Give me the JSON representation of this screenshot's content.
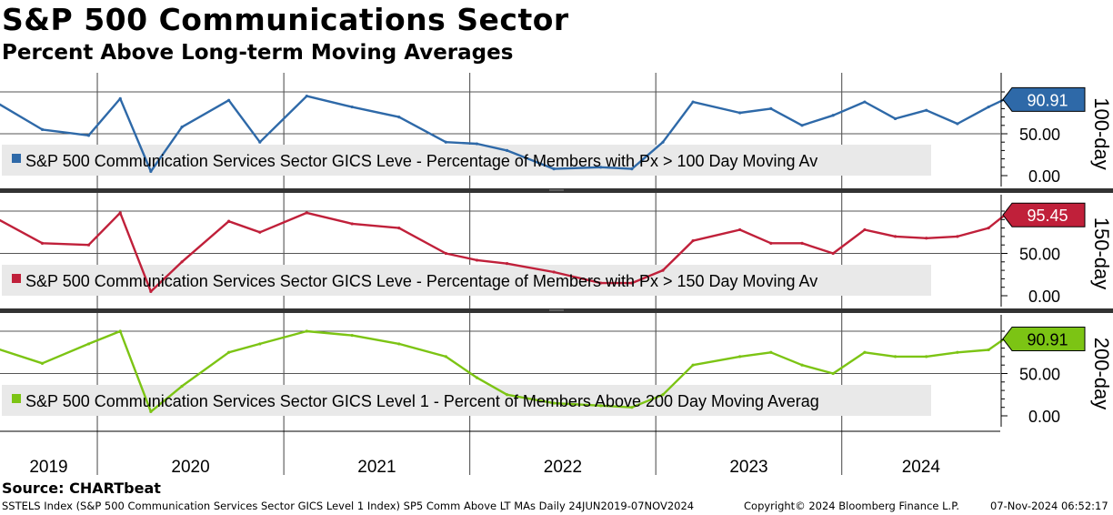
{
  "title": "S&P 500 Communications Sector",
  "subtitle": "Percent Above Long-term Moving Averages",
  "source": "Source: CHARTbeat",
  "footer": {
    "left": "SSTELS Index (S&P 500 Communication Services Sector GICS Level 1 Index) SP5 Comm Above LT MAs  Daily 24JUN2019-07NOV2024",
    "middle": "Copyright© 2024 Bloomberg Finance L.P.",
    "right": "07-Nov-2024 06:52:17"
  },
  "chart_data": {
    "type": "line",
    "x_range": [
      "2019-06-24",
      "2024-11-07"
    ],
    "x_tick_labels": [
      "2019",
      "2020",
      "2021",
      "2022",
      "2023",
      "2024"
    ],
    "grid": true,
    "legend_position": "bottom-left",
    "panels": [
      {
        "side_label": "100-day",
        "legend": "S&P 500 Communication Services Sector GICS Leve - Percentage of Members with Px > 100 Day Moving Av",
        "color": "#2e69a8",
        "last_value": "90.91",
        "y_ticks": [
          "50.00",
          "0.00"
        ],
        "ylim": [
          0,
          100
        ],
        "x": [
          "2019-06",
          "2019-09",
          "2019-12",
          "2020-02",
          "2020-04",
          "2020-06",
          "2020-09",
          "2020-11",
          "2021-02",
          "2021-05",
          "2021-08",
          "2021-11",
          "2022-01",
          "2022-03",
          "2022-06",
          "2022-09",
          "2022-11",
          "2023-01",
          "2023-03",
          "2023-06",
          "2023-08",
          "2023-10",
          "2023-12",
          "2024-02",
          "2024-04",
          "2024-06",
          "2024-08",
          "2024-10",
          "2024-11"
        ],
        "y": [
          88,
          55,
          48,
          92,
          5,
          58,
          90,
          40,
          95,
          82,
          70,
          40,
          38,
          30,
          8,
          10,
          8,
          40,
          88,
          75,
          80,
          60,
          72,
          88,
          68,
          78,
          62,
          82,
          91
        ]
      },
      {
        "side_label": "150-day",
        "legend": "S&P 500 Communication Services Sector GICS Leve - Percentage of Members with Px > 150 Day Moving Av",
        "color": "#c0203a",
        "last_value": "95.45",
        "y_ticks": [
          "50.00",
          "0.00"
        ],
        "ylim": [
          0,
          100
        ],
        "x": [
          "2019-06",
          "2019-09",
          "2019-12",
          "2020-02",
          "2020-04",
          "2020-06",
          "2020-09",
          "2020-11",
          "2021-02",
          "2021-05",
          "2021-08",
          "2021-11",
          "2022-01",
          "2022-03",
          "2022-06",
          "2022-09",
          "2022-11",
          "2023-01",
          "2023-03",
          "2023-06",
          "2023-08",
          "2023-10",
          "2023-12",
          "2024-02",
          "2024-04",
          "2024-06",
          "2024-08",
          "2024-10",
          "2024-11"
        ],
        "y": [
          92,
          62,
          60,
          98,
          5,
          40,
          88,
          75,
          98,
          85,
          80,
          50,
          42,
          38,
          28,
          15,
          15,
          30,
          65,
          78,
          62,
          62,
          50,
          78,
          70,
          68,
          70,
          80,
          95
        ]
      },
      {
        "side_label": "200-day",
        "legend": "S&P 500 Communication Services Sector GICS Level 1 - Percent of Members Above 200 Day Moving Averag",
        "color": "#7cc414",
        "last_value": "90.91",
        "y_ticks": [
          "50.00",
          "0.00"
        ],
        "ylim": [
          0,
          100
        ],
        "x": [
          "2019-06",
          "2019-09",
          "2019-12",
          "2020-02",
          "2020-04",
          "2020-06",
          "2020-09",
          "2020-11",
          "2021-02",
          "2021-05",
          "2021-08",
          "2021-11",
          "2022-01",
          "2022-03",
          "2022-06",
          "2022-09",
          "2022-11",
          "2023-01",
          "2023-03",
          "2023-06",
          "2023-08",
          "2023-10",
          "2023-12",
          "2024-02",
          "2024-04",
          "2024-06",
          "2024-08",
          "2024-10",
          "2024-11"
        ],
        "y": [
          80,
          62,
          85,
          100,
          5,
          35,
          75,
          85,
          100,
          95,
          85,
          70,
          45,
          25,
          15,
          12,
          10,
          25,
          60,
          70,
          75,
          60,
          50,
          75,
          70,
          70,
          75,
          78,
          91
        ]
      }
    ]
  }
}
